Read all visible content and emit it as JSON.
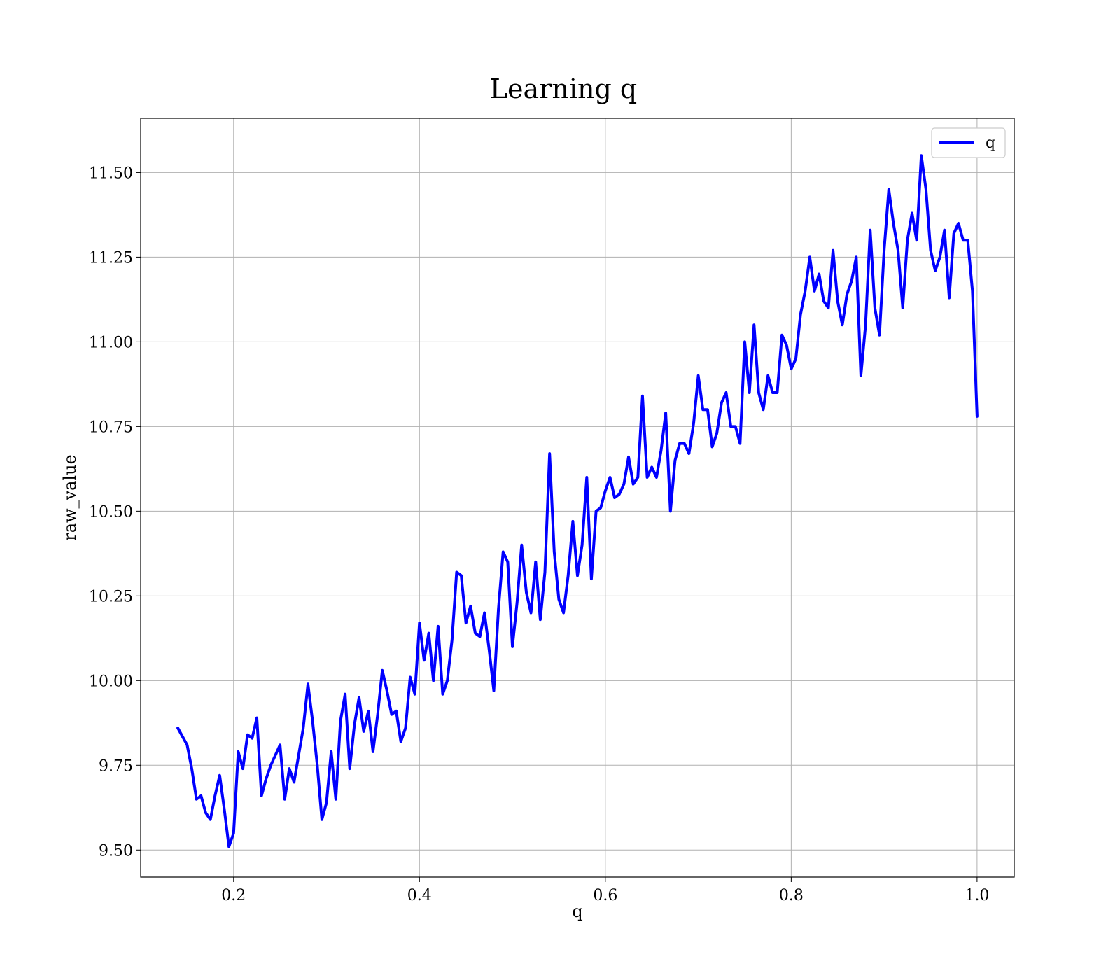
{
  "chart_data": {
    "type": "line",
    "title": "Learning q",
    "xlabel": "q",
    "ylabel": "raw_value",
    "xlim": [
      0.1,
      1.04
    ],
    "ylim": [
      9.42,
      11.66
    ],
    "x_ticks": [
      0.2,
      0.4,
      0.6,
      0.8,
      1.0
    ],
    "x_tick_labels": [
      "0.2",
      "0.4",
      "0.6",
      "0.8",
      "1.0"
    ],
    "y_ticks": [
      9.5,
      9.75,
      10.0,
      10.25,
      10.5,
      10.75,
      11.0,
      11.25,
      11.5
    ],
    "y_tick_labels": [
      "9.50",
      "9.75",
      "10.00",
      "10.25",
      "10.50",
      "10.75",
      "11.00",
      "11.25",
      "11.50"
    ],
    "grid": true,
    "legend_position": "top-right",
    "colors": {
      "line": "#0000ff"
    },
    "series": [
      {
        "name": "q",
        "x": [
          0.14,
          0.15,
          0.155,
          0.16,
          0.165,
          0.17,
          0.175,
          0.18,
          0.185,
          0.19,
          0.195,
          0.2,
          0.205,
          0.21,
          0.215,
          0.22,
          0.225,
          0.23,
          0.235,
          0.24,
          0.245,
          0.25,
          0.255,
          0.26,
          0.265,
          0.27,
          0.275,
          0.28,
          0.285,
          0.29,
          0.295,
          0.3,
          0.305,
          0.31,
          0.315,
          0.32,
          0.325,
          0.33,
          0.335,
          0.34,
          0.345,
          0.35,
          0.355,
          0.36,
          0.365,
          0.37,
          0.375,
          0.38,
          0.385,
          0.39,
          0.395,
          0.4,
          0.405,
          0.41,
          0.415,
          0.42,
          0.425,
          0.43,
          0.435,
          0.44,
          0.445,
          0.45,
          0.455,
          0.46,
          0.465,
          0.47,
          0.475,
          0.48,
          0.485,
          0.49,
          0.495,
          0.5,
          0.505,
          0.51,
          0.515,
          0.52,
          0.525,
          0.53,
          0.535,
          0.54,
          0.545,
          0.55,
          0.555,
          0.56,
          0.565,
          0.57,
          0.575,
          0.58,
          0.585,
          0.59,
          0.595,
          0.6,
          0.605,
          0.61,
          0.615,
          0.62,
          0.625,
          0.63,
          0.635,
          0.64,
          0.645,
          0.65,
          0.655,
          0.66,
          0.665,
          0.67,
          0.675,
          0.68,
          0.685,
          0.69,
          0.695,
          0.7,
          0.705,
          0.71,
          0.715,
          0.72,
          0.725,
          0.73,
          0.735,
          0.74,
          0.745,
          0.75,
          0.755,
          0.76,
          0.765,
          0.77,
          0.775,
          0.78,
          0.785,
          0.79,
          0.795,
          0.8,
          0.805,
          0.81,
          0.815,
          0.82,
          0.825,
          0.83,
          0.835,
          0.84,
          0.845,
          0.85,
          0.855,
          0.86,
          0.865,
          0.87,
          0.875,
          0.88,
          0.885,
          0.89,
          0.895,
          0.9,
          0.905,
          0.91,
          0.915,
          0.92,
          0.925,
          0.93,
          0.935,
          0.94,
          0.945,
          0.95,
          0.955,
          0.96,
          0.965,
          0.97,
          0.975,
          0.98,
          0.985,
          0.99,
          0.995,
          1.0
        ],
        "values": [
          9.86,
          9.81,
          9.74,
          9.65,
          9.66,
          9.61,
          9.59,
          9.66,
          9.72,
          9.62,
          9.51,
          9.55,
          9.79,
          9.74,
          9.84,
          9.83,
          9.89,
          9.66,
          9.71,
          9.75,
          9.78,
          9.81,
          9.65,
          9.74,
          9.7,
          9.78,
          9.86,
          9.99,
          9.88,
          9.75,
          9.59,
          9.64,
          9.79,
          9.65,
          9.88,
          9.96,
          9.74,
          9.87,
          9.95,
          9.85,
          9.91,
          9.79,
          9.9,
          10.03,
          9.97,
          9.9,
          9.91,
          9.82,
          9.86,
          10.01,
          9.96,
          10.17,
          10.06,
          10.14,
          10.0,
          10.16,
          9.96,
          10.0,
          10.12,
          10.32,
          10.31,
          10.17,
          10.22,
          10.14,
          10.13,
          10.2,
          10.09,
          9.97,
          10.21,
          10.38,
          10.35,
          10.1,
          10.23,
          10.4,
          10.26,
          10.2,
          10.35,
          10.18,
          10.32,
          10.67,
          10.38,
          10.24,
          10.2,
          10.31,
          10.47,
          10.31,
          10.4,
          10.6,
          10.3,
          10.5,
          10.51,
          10.56,
          10.6,
          10.54,
          10.55,
          10.58,
          10.66,
          10.58,
          10.6,
          10.84,
          10.6,
          10.63,
          10.6,
          10.68,
          10.79,
          10.5,
          10.65,
          10.7,
          10.7,
          10.67,
          10.76,
          10.9,
          10.8,
          10.8,
          10.69,
          10.73,
          10.82,
          10.85,
          10.75,
          10.75,
          10.7,
          11.0,
          10.85,
          11.05,
          10.85,
          10.8,
          10.9,
          10.85,
          10.85,
          11.02,
          10.99,
          10.92,
          10.95,
          11.08,
          11.15,
          11.25,
          11.15,
          11.2,
          11.12,
          11.1,
          11.27,
          11.12,
          11.05,
          11.14,
          11.18,
          11.25,
          10.9,
          11.05,
          11.33,
          11.1,
          11.02,
          11.27,
          11.45,
          11.35,
          11.27,
          11.1,
          11.3,
          11.38,
          11.3,
          11.55,
          11.45,
          11.27,
          11.21,
          11.25,
          11.33,
          11.13,
          11.32,
          11.35,
          11.3,
          11.3,
          11.15,
          10.78
        ]
      }
    ]
  }
}
